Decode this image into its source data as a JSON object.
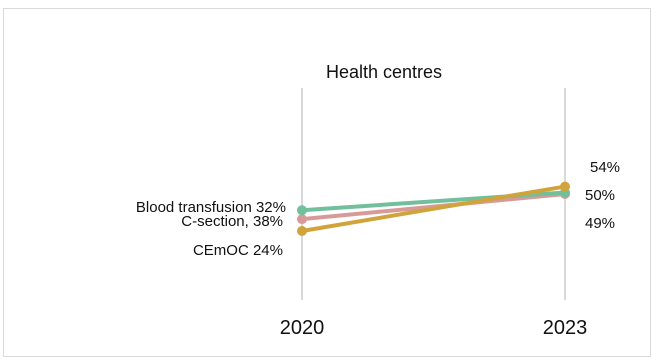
{
  "chart_data": {
    "type": "line",
    "title": "Health centres",
    "x": [
      "2020",
      "2023"
    ],
    "xlabel": "",
    "ylabel": "",
    "ylim": [
      0,
      100
    ],
    "grid": "vertical lines at each year",
    "series": [
      {
        "name": "Blood transfusion",
        "color": "#d89a98",
        "values": [
          32,
          49
        ],
        "labels": [
          "Blood transfusion 32%",
          "49%"
        ]
      },
      {
        "name": "C-section",
        "color": "#72bf9b",
        "values": [
          38,
          50
        ],
        "labels": [
          "C-section, 38%",
          "50%"
        ]
      },
      {
        "name": "CEmOC",
        "color": "#d1a43b",
        "values": [
          24,
          54
        ],
        "labels": [
          "CEmOC 24%",
          "54%"
        ]
      }
    ]
  }
}
